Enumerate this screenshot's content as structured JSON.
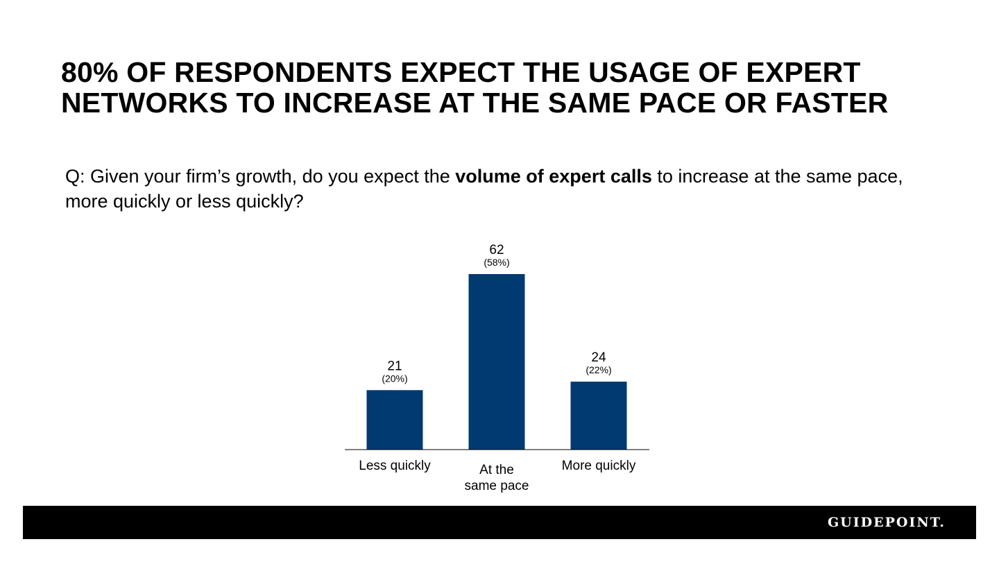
{
  "slide": {
    "title_line1": "80% OF RESPONDENTS EXPECT THE USAGE OF EXPERT",
    "title_line2": "NETWORKS TO INCREASE AT THE SAME PACE OR FASTER"
  },
  "question": {
    "prefix": "Q: Given your firm’s growth, do you expect the ",
    "emphasis": "volume of expert calls",
    "suffix": " to increase at the same pace, more quickly or less quickly?"
  },
  "chart_data": {
    "type": "bar",
    "title": "",
    "xlabel": "",
    "ylabel": "",
    "ylim": [
      0,
      62
    ],
    "categories": [
      [
        "Less quickly"
      ],
      [
        "At the",
        "same pace"
      ],
      [
        "More quickly"
      ]
    ],
    "values": [
      21,
      62,
      24
    ],
    "percent_labels": [
      "(20%)",
      "(58%)",
      "(22%)"
    ],
    "grid": false,
    "legend": "none",
    "bar_color": "#003A70"
  },
  "footer": {
    "brand": "GUIDEPOINT."
  },
  "colors": {
    "bar": "#003A70",
    "footer_background": "#000000",
    "brand_text": "#ffffff"
  }
}
